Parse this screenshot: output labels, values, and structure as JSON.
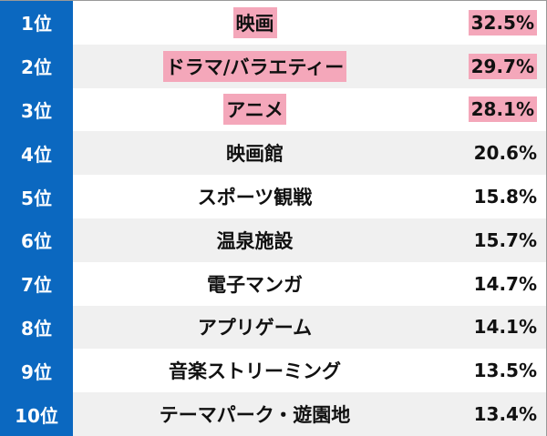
{
  "colors": {
    "rank_bg": "#0b68c0",
    "highlight": "#f4a7ba",
    "alt_row": "#f0f0f0"
  },
  "rows": [
    {
      "rank": "1位",
      "name": "映画",
      "percent": "32.5%",
      "highlight": true
    },
    {
      "rank": "2位",
      "name": "ドラマ/バラエティー",
      "percent": "29.7%",
      "highlight": true
    },
    {
      "rank": "3位",
      "name": "アニメ",
      "percent": "28.1%",
      "highlight": true
    },
    {
      "rank": "4位",
      "name": "映画館",
      "percent": "20.6%",
      "highlight": false
    },
    {
      "rank": "5位",
      "name": "スポーツ観戦",
      "percent": "15.8%",
      "highlight": false
    },
    {
      "rank": "6位",
      "name": "温泉施設",
      "percent": "15.7%",
      "highlight": false
    },
    {
      "rank": "7位",
      "name": "電子マンガ",
      "percent": "14.7%",
      "highlight": false
    },
    {
      "rank": "8位",
      "name": "アプリゲーム",
      "percent": "14.1%",
      "highlight": false
    },
    {
      "rank": "9位",
      "name": "音楽ストリーミング",
      "percent": "13.5%",
      "highlight": false
    },
    {
      "rank": "10位",
      "name": "テーマパーク・遊園地",
      "percent": "13.4%",
      "highlight": false
    }
  ]
}
